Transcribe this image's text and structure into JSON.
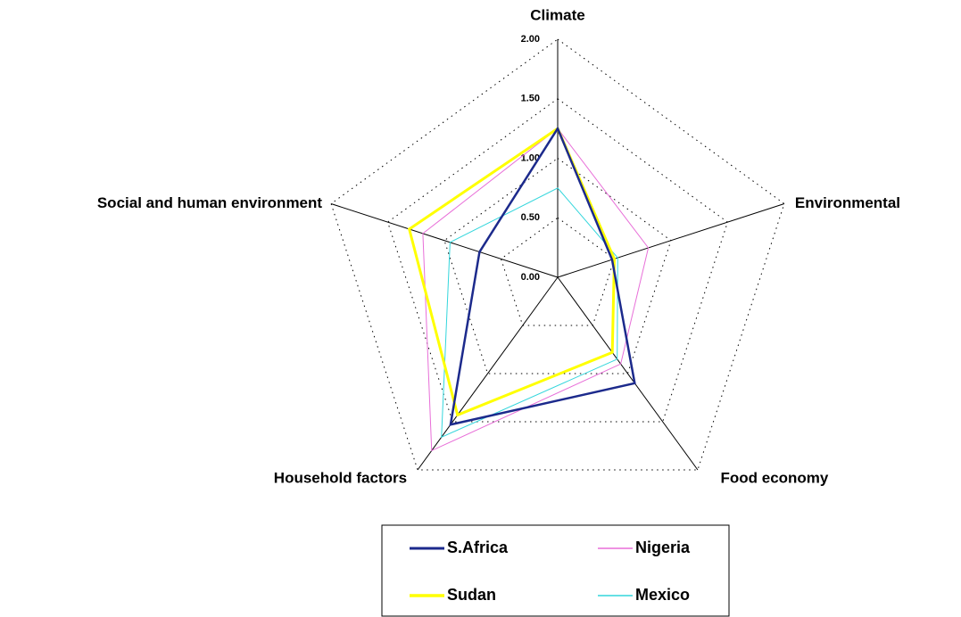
{
  "chart_data": {
    "type": "radar",
    "categories": [
      "Climate",
      "Environmental",
      "Food economy",
      "Household factors",
      "Social and human environment"
    ],
    "rlim": [
      0,
      2
    ],
    "rticks": [
      {
        "value": 0,
        "label": "0.00"
      },
      {
        "value": 0.5,
        "label": "0.50"
      },
      {
        "value": 1,
        "label": "1.00"
      },
      {
        "value": 1.5,
        "label": "1.50"
      },
      {
        "value": 2,
        "label": "2.00"
      }
    ],
    "grid": true,
    "series": [
      {
        "name": "S.Africa",
        "color": "#1c2a8c",
        "values": [
          1.25,
          0.48,
          1.1,
          1.53,
          0.69
        ]
      },
      {
        "name": "Nigeria",
        "color": "#e86fd8",
        "values": [
          1.25,
          0.8,
          0.9,
          1.8,
          1.19
        ]
      },
      {
        "name": "Sudan",
        "color": "#ffff00",
        "values": [
          1.25,
          0.5,
          0.78,
          1.43,
          1.31
        ]
      },
      {
        "name": "Mexico",
        "color": "#33d6dc",
        "values": [
          0.75,
          0.53,
          0.85,
          1.66,
          0.95
        ]
      }
    ]
  }
}
